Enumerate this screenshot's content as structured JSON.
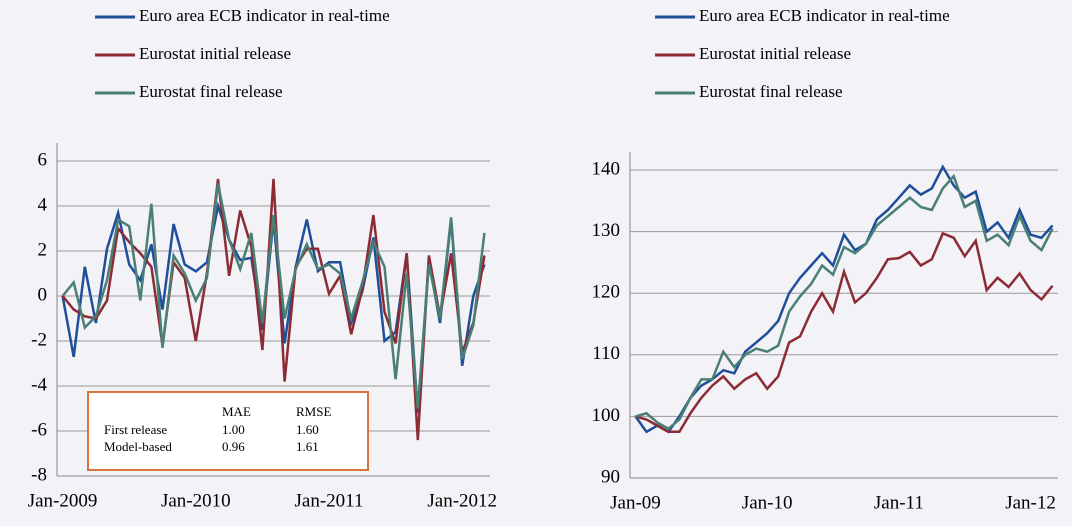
{
  "chart_data": [
    {
      "type": "line",
      "categories": [
        "Jan-2009",
        null,
        null,
        null,
        null,
        null,
        null,
        null,
        null,
        null,
        null,
        null,
        "Jan-2010",
        null,
        null,
        null,
        null,
        null,
        null,
        null,
        null,
        null,
        null,
        null,
        "Jan-2011",
        null,
        null,
        null,
        null,
        null,
        null,
        null,
        null,
        null,
        null,
        null,
        "Jan-2012",
        null,
        null
      ],
      "series": [
        {
          "name": "Euro area ECB indicator in real-time",
          "color": "#1f4e9a",
          "values": [
            0,
            -2.7,
            1.3,
            -1.2,
            2.1,
            3.7,
            1.4,
            0.7,
            2.3,
            -0.6,
            3.2,
            1.4,
            1.1,
            1.5,
            4.0,
            2.5,
            1.6,
            1.7,
            -1.5,
            3.4,
            -2.1,
            1.3,
            3.4,
            1.1,
            1.5,
            1.5,
            -1.2,
            0.2,
            2.6,
            -2.0,
            -1.6,
            1.9,
            -5.2,
            1.6,
            -1.2,
            3.4,
            -3.1,
            0,
            1.4
          ]
        },
        {
          "name": "Eurostat initial release",
          "color": "#8b2b35",
          "values": [
            0,
            -0.6,
            -0.9,
            -1.0,
            -0.2,
            3.0,
            2.4,
            1.9,
            1.3,
            -2.2,
            1.5,
            0.8,
            -2.0,
            1.0,
            5.2,
            0.9,
            3.8,
            2.2,
            -2.4,
            5.2,
            -3.8,
            1.3,
            2.1,
            2.1,
            0.1,
            0.9,
            -1.7,
            0.3,
            3.6,
            -0.7,
            -2.1,
            1.9,
            -6.4,
            1.8,
            -0.9,
            1.9,
            -2.5,
            -1.2,
            1.8
          ]
        },
        {
          "name": "Eurostat final release",
          "color": "#4a7f74",
          "values": [
            0,
            0.6,
            -1.4,
            -0.9,
            0.7,
            3.4,
            3.1,
            -0.2,
            4.1,
            -2.3,
            1.8,
            1.0,
            -0.2,
            0.8,
            5.0,
            2.5,
            1.2,
            2.8,
            -1.2,
            3.6,
            -1.0,
            1.2,
            2.3,
            1.2,
            1.4,
            1.0,
            -1.0,
            0.6,
            2.4,
            1.3,
            -3.7,
            1.0,
            -5.0,
            1.4,
            -1.0,
            3.5,
            -2.8,
            -1.3,
            2.8
          ]
        }
      ],
      "ylim": [
        -8,
        6
      ],
      "yticks": [
        -8,
        -6,
        -4,
        -2,
        0,
        2,
        4,
        6
      ],
      "grid": true,
      "table": {
        "header": [
          "MAE",
          "RMSE"
        ],
        "rows": [
          [
            "First release",
            "1.00",
            "1.60"
          ],
          [
            "Model-based",
            "0.96",
            "1.61"
          ]
        ]
      }
    },
    {
      "type": "line",
      "categories": [
        "Jan-09",
        null,
        null,
        null,
        null,
        null,
        null,
        null,
        null,
        null,
        null,
        null,
        "Jan-10",
        null,
        null,
        null,
        null,
        null,
        null,
        null,
        null,
        null,
        null,
        null,
        "Jan-11",
        null,
        null,
        null,
        null,
        null,
        null,
        null,
        null,
        null,
        null,
        null,
        "Jan-12",
        null,
        null
      ],
      "series": [
        {
          "name": "Euro area ECB indicator in real-time",
          "color": "#1f4e9a",
          "values": [
            100,
            97.5,
            98.5,
            97.5,
            100,
            103,
            105,
            106,
            107.5,
            107,
            110.5,
            112,
            113.5,
            115.5,
            120,
            122.5,
            124.5,
            126.5,
            124.5,
            129.5,
            127,
            128,
            132,
            133.5,
            135.5,
            137.5,
            136,
            137,
            140.5,
            137.5,
            135.5,
            136.5,
            130,
            131.5,
            129,
            133.5,
            129.5,
            129,
            131
          ]
        },
        {
          "name": "Eurostat initial release",
          "color": "#8b2b35",
          "values": [
            100,
            99.5,
            98.5,
            97.5,
            97.5,
            100.5,
            103,
            105,
            106.5,
            104.5,
            106,
            107,
            104.5,
            106.5,
            112,
            113,
            117,
            120,
            117,
            123.5,
            118.5,
            120,
            122.5,
            125.5,
            125.7,
            126.7,
            124.5,
            125.5,
            129.7,
            129,
            126,
            128.5,
            120.5,
            122.5,
            121,
            123.2,
            120.5,
            119,
            121.2
          ]
        },
        {
          "name": "Eurostat final release",
          "color": "#4a7f74",
          "values": [
            100,
            100.5,
            99,
            98,
            99.5,
            103,
            106,
            106,
            110.5,
            108,
            110,
            111,
            110.5,
            111.5,
            117,
            119.5,
            121.5,
            124.5,
            123,
            127.5,
            126.5,
            128,
            131,
            132.5,
            134,
            135.5,
            134,
            133.5,
            137,
            139,
            134,
            135,
            128.5,
            129.5,
            127.8,
            132.5,
            128.5,
            127,
            130.5
          ]
        }
      ],
      "ylim": [
        90,
        140
      ],
      "yticks": [
        90,
        100,
        110,
        120,
        130,
        140
      ],
      "grid": true
    }
  ]
}
